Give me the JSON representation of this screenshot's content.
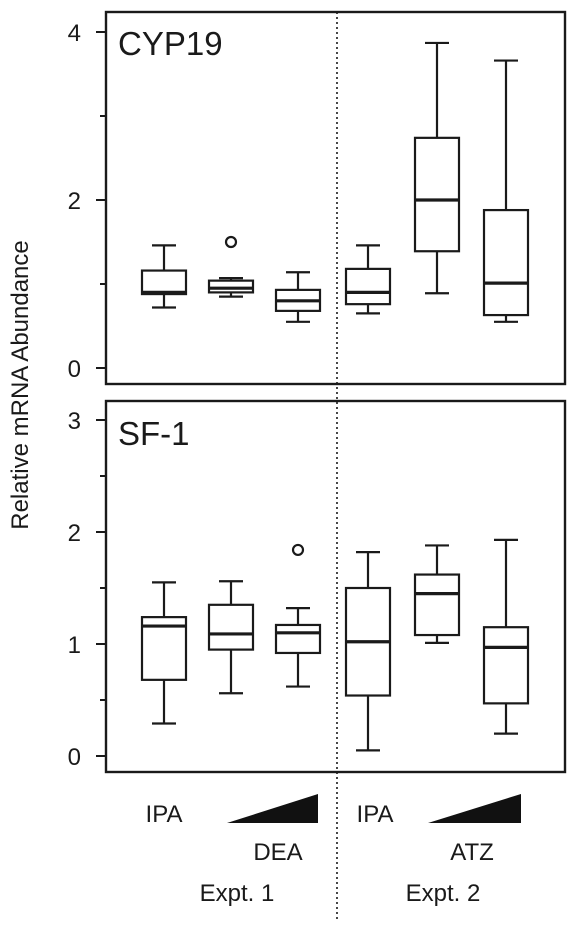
{
  "chart_data": {
    "y_axis_label": "Relative mRNA Abundance",
    "panels": [
      {
        "title": "CYP19",
        "type": "boxplot",
        "ylim": [
          0,
          4
        ],
        "major_ticks": [
          0,
          2,
          4
        ],
        "minor_ticks": [
          1,
          3
        ],
        "groups": [
          {
            "treatment": "IPA",
            "experiment": "Expt. 1",
            "min": 0.72,
            "q1": 0.88,
            "median": 0.9,
            "q3": 1.16,
            "max": 1.46,
            "outliers": []
          },
          {
            "treatment": "DEA low",
            "experiment": "Expt. 1",
            "min": 0.85,
            "q1": 0.9,
            "median": 0.95,
            "q3": 1.04,
            "max": 1.07,
            "outliers": [
              1.5
            ]
          },
          {
            "treatment": "DEA high",
            "experiment": "Expt. 1",
            "min": 0.55,
            "q1": 0.68,
            "median": 0.8,
            "q3": 0.93,
            "max": 1.14,
            "outliers": []
          },
          {
            "treatment": "IPA",
            "experiment": "Expt. 2",
            "min": 0.65,
            "q1": 0.76,
            "median": 0.9,
            "q3": 1.18,
            "max": 1.46,
            "outliers": []
          },
          {
            "treatment": "ATZ low",
            "experiment": "Expt. 2",
            "min": 0.89,
            "q1": 1.39,
            "median": 2.0,
            "q3": 2.74,
            "max": 3.87,
            "outliers": []
          },
          {
            "treatment": "ATZ high",
            "experiment": "Expt. 2",
            "min": 0.55,
            "q1": 0.63,
            "median": 1.01,
            "q3": 1.88,
            "max": 3.66,
            "outliers": []
          }
        ]
      },
      {
        "title": "SF-1",
        "type": "boxplot",
        "ylim": [
          0,
          3
        ],
        "major_ticks": [
          0,
          1,
          2,
          3
        ],
        "minor_ticks": [
          0.5,
          1.5,
          2.5
        ],
        "groups": [
          {
            "treatment": "IPA",
            "experiment": "Expt. 1",
            "min": 0.29,
            "q1": 0.68,
            "median": 1.16,
            "q3": 1.24,
            "max": 1.55,
            "outliers": []
          },
          {
            "treatment": "DEA low",
            "experiment": "Expt. 1",
            "min": 0.56,
            "q1": 0.95,
            "median": 1.09,
            "q3": 1.35,
            "max": 1.56,
            "outliers": []
          },
          {
            "treatment": "DEA high",
            "experiment": "Expt. 1",
            "min": 0.62,
            "q1": 0.92,
            "median": 1.1,
            "q3": 1.17,
            "max": 1.32,
            "outliers": [
              1.84
            ]
          },
          {
            "treatment": "IPA",
            "experiment": "Expt. 2",
            "min": 0.05,
            "q1": 0.54,
            "median": 1.02,
            "q3": 1.5,
            "max": 1.82,
            "outliers": []
          },
          {
            "treatment": "ATZ low",
            "experiment": "Expt. 2",
            "min": 1.01,
            "q1": 1.08,
            "median": 1.45,
            "q3": 1.62,
            "max": 1.88,
            "outliers": []
          },
          {
            "treatment": "ATZ high",
            "experiment": "Expt. 2",
            "min": 0.2,
            "q1": 0.47,
            "median": 0.97,
            "q3": 1.15,
            "max": 1.93,
            "outliers": []
          }
        ]
      }
    ],
    "x_annotations": {
      "expt1": {
        "control": "IPA",
        "compound": "DEA",
        "label": "Expt. 1"
      },
      "expt2": {
        "control": "IPA",
        "compound": "ATZ",
        "label": "Expt. 2"
      }
    }
  }
}
